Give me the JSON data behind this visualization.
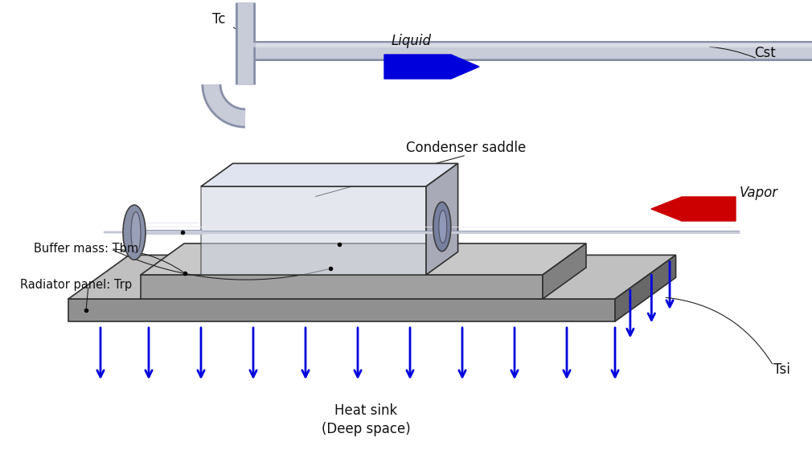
{
  "bg_color": "#ffffff",
  "label_tc": "Tc",
  "label_cst": "Cst",
  "label_liquid": "Liquid",
  "label_vapor": "Vapor",
  "label_condenser": "Condenser saddle",
  "label_buffer": "Buffer mass: Tbm",
  "label_radiator": "Radiator panel: Trp",
  "label_heatsink": "Heat sink\n(Deep space)",
  "label_tsi": "Tsi",
  "arrow_blue": "#0000dd",
  "arrow_red": "#cc0000",
  "pipe_body": "#c8ccd8",
  "pipe_highlight": "#e8eaf0",
  "pipe_shadow": "#8890a8",
  "pipe_cap": "#9098b0",
  "box_front": "#d0d4e0",
  "box_top": "#e0e4f0",
  "box_right": "#a8aab8",
  "box_edge": "#303030",
  "rp_top": "#c0c0c0",
  "rp_front": "#909090",
  "rp_right": "#686868",
  "bm_top": "#c8c8c8",
  "bm_front": "#a0a0a0",
  "bm_right": "#808080",
  "text_color": "#111111",
  "annot_color": "#222222",
  "fs_label": 11,
  "fs_arrow_label": 12
}
